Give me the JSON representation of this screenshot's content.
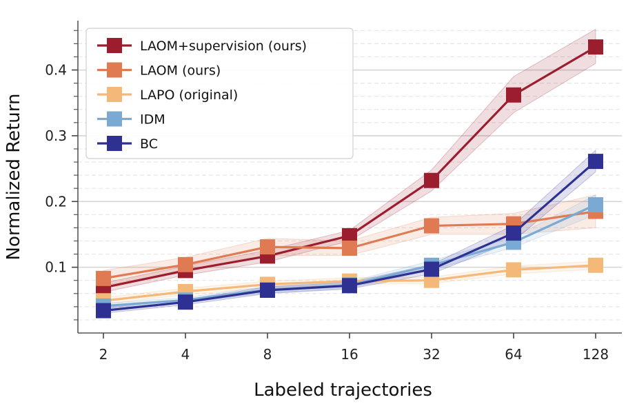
{
  "chart_data": {
    "type": "line",
    "xlabel": "Labeled trajectories",
    "ylabel": "Normalized Return",
    "x_scale": "log2",
    "categories": [
      "2",
      "4",
      "8",
      "16",
      "32",
      "64",
      "128"
    ],
    "x": [
      2,
      4,
      8,
      16,
      32,
      64,
      128
    ],
    "ylim": [
      0.0,
      0.475
    ],
    "yticks": [
      0.1,
      0.2,
      0.3,
      0.4
    ],
    "ytick_labels": [
      "0.1",
      "0.2",
      "0.3",
      "0.4"
    ],
    "grid": "horizontal major and minor",
    "legend_position": "top-left",
    "series": [
      {
        "name": "LAOM+supervision (ours)",
        "color": "#9b1d2e",
        "values": [
          0.069,
          0.095,
          0.117,
          0.148,
          0.232,
          0.362,
          0.435
        ],
        "lower": [
          0.062,
          0.088,
          0.108,
          0.14,
          0.216,
          0.335,
          0.41
        ],
        "upper": [
          0.076,
          0.102,
          0.126,
          0.156,
          0.248,
          0.39,
          0.462
        ]
      },
      {
        "name": "LAOM (ours)",
        "color": "#e07a52",
        "values": [
          0.083,
          0.104,
          0.131,
          0.129,
          0.163,
          0.166,
          0.185
        ],
        "lower": [
          0.072,
          0.094,
          0.118,
          0.118,
          0.15,
          0.15,
          0.16
        ],
        "upper": [
          0.095,
          0.115,
          0.144,
          0.14,
          0.176,
          0.182,
          0.21
        ]
      },
      {
        "name": "LAPO (original)",
        "color": "#f4b878",
        "values": [
          0.049,
          0.063,
          0.074,
          0.079,
          0.08,
          0.096,
          0.103
        ],
        "lower": [
          0.044,
          0.058,
          0.069,
          0.074,
          0.075,
          0.09,
          0.097
        ],
        "upper": [
          0.054,
          0.068,
          0.079,
          0.084,
          0.085,
          0.102,
          0.109
        ]
      },
      {
        "name": "IDM",
        "color": "#7aaad4",
        "values": [
          0.041,
          0.05,
          0.066,
          0.073,
          0.103,
          0.138,
          0.195
        ],
        "lower": [
          0.037,
          0.046,
          0.061,
          0.068,
          0.096,
          0.13,
          0.18
        ],
        "upper": [
          0.045,
          0.054,
          0.071,
          0.078,
          0.11,
          0.146,
          0.21
        ]
      },
      {
        "name": "BC",
        "color": "#2e3192",
        "values": [
          0.034,
          0.047,
          0.065,
          0.072,
          0.097,
          0.152,
          0.261
        ],
        "lower": [
          0.03,
          0.043,
          0.06,
          0.067,
          0.09,
          0.14,
          0.245
        ],
        "upper": [
          0.038,
          0.051,
          0.07,
          0.077,
          0.104,
          0.164,
          0.278
        ]
      }
    ]
  }
}
